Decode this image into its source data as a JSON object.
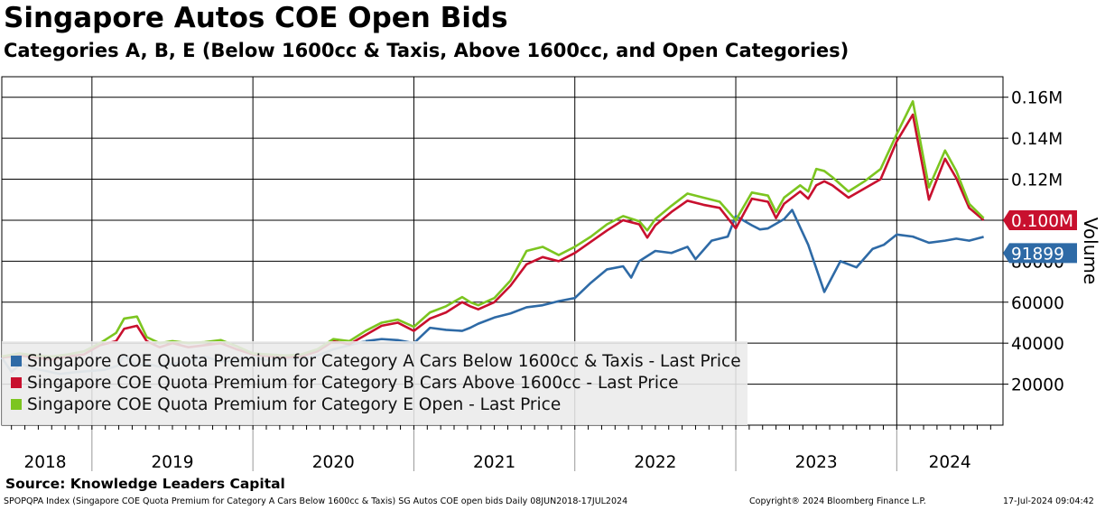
{
  "title": "Singapore Autos COE Open Bids",
  "subtitle": "Categories A, B, E (Below 1600cc & Taxis, Above 1600cc, and Open Categories)",
  "source": "Source: Knowledge Leaders Capital",
  "footer": {
    "left": "SPOPQPA Index (Singapore COE Quota Premium for Category A Cars Below 1600cc & Taxis) SG Autos COE open bids  Daily 08JUN2018-17JUL2024",
    "middle": "Copyright® 2024 Bloomberg Finance L.P.",
    "right": "17-Jul-2024 09:04:42"
  },
  "colors": {
    "cat_a": "#2e6aa6",
    "cat_b": "#c8102e",
    "cat_e": "#7cc520",
    "cat_a_early": "#8fb0cf"
  },
  "chart_data": {
    "type": "line",
    "ylabel": "Volume",
    "ylim": [
      0,
      170000
    ],
    "y_ticks": [
      20000,
      40000,
      60000,
      80000,
      100000,
      120000,
      140000,
      160000
    ],
    "y_tick_labels": [
      "20000",
      "40000",
      "60000",
      "80000",
      "0.10M",
      "0.12M",
      "0.14M",
      "0.16M"
    ],
    "x_year_labels": [
      "2018",
      "2019",
      "2020",
      "2021",
      "2022",
      "2023",
      "2024"
    ],
    "grid": true,
    "legend_position": "bottom-left",
    "last_value_labels": {
      "cat_b": "0.100M",
      "cat_a": "91899"
    },
    "series": [
      {
        "key": "cat_a",
        "name": "Singapore COE Quota Premium for Category A Cars Below 1600cc & Taxis - Last Price",
        "x": [
          2018.44,
          2018.5,
          2018.56,
          2018.62,
          2018.68,
          2018.74,
          2018.8,
          2018.86,
          2018.92,
          2019.0,
          2019.08,
          2019.16,
          2019.2,
          2019.28,
          2019.34,
          2019.42,
          2019.5,
          2019.6,
          2019.7,
          2019.8,
          2019.9,
          2020.0,
          2020.1,
          2020.2,
          2020.3,
          2020.4,
          2020.5,
          2020.6,
          2020.7,
          2020.8,
          2020.9,
          2021.0,
          2021.1,
          2021.2,
          2021.3,
          2021.35,
          2021.4,
          2021.5,
          2021.6,
          2021.7,
          2021.8,
          2021.9,
          2022.0,
          2022.1,
          2022.2,
          2022.3,
          2022.35,
          2022.4,
          2022.5,
          2022.6,
          2022.7,
          2022.75,
          2022.85,
          2022.95,
          2023.0,
          2023.1,
          2023.15,
          2023.2,
          2023.3,
          2023.35,
          2023.45,
          2023.55,
          2023.65,
          2023.75,
          2023.85,
          2023.92,
          2024.0,
          2024.1,
          2024.2,
          2024.3,
          2024.37,
          2024.45,
          2024.54
        ],
        "values": [
          33000,
          26000,
          30000,
          28000,
          27000,
          26000,
          25000,
          25500,
          26000,
          26500,
          27000,
          29000,
          34000,
          29000,
          30000,
          28500,
          30000,
          31000,
          33500,
          31000,
          32000,
          33000,
          31500,
          32500,
          32000,
          34000,
          37000,
          39000,
          41000,
          42000,
          41500,
          40000,
          47500,
          46500,
          46000,
          47500,
          49500,
          52500,
          54500,
          57500,
          58500,
          60500,
          62000,
          69500,
          76000,
          77500,
          72000,
          80000,
          85000,
          84000,
          87000,
          81000,
          90000,
          92000,
          102000,
          97500,
          95500,
          96000,
          100500,
          105000,
          88000,
          65000,
          80000,
          77000,
          86000,
          88000,
          93000,
          92000,
          89000,
          90000,
          91000,
          90000,
          91899
        ]
      },
      {
        "key": "cat_b",
        "name": "Singapore COE Quota Premium for Category B Cars Above 1600cc - Last Price",
        "x": [
          2018.44,
          2018.55,
          2018.65,
          2018.75,
          2018.85,
          2018.95,
          2019.05,
          2019.15,
          2019.2,
          2019.28,
          2019.34,
          2019.42,
          2019.5,
          2019.6,
          2019.7,
          2019.8,
          2019.9,
          2020.0,
          2020.1,
          2020.2,
          2020.3,
          2020.4,
          2020.5,
          2020.6,
          2020.7,
          2020.8,
          2020.9,
          2021.0,
          2021.1,
          2021.2,
          2021.3,
          2021.35,
          2021.4,
          2021.5,
          2021.6,
          2021.7,
          2021.8,
          2021.9,
          2022.0,
          2022.1,
          2022.2,
          2022.3,
          2022.4,
          2022.45,
          2022.5,
          2022.6,
          2022.7,
          2022.8,
          2022.9,
          2023.0,
          2023.1,
          2023.2,
          2023.25,
          2023.3,
          2023.4,
          2023.45,
          2023.5,
          2023.55,
          2023.6,
          2023.7,
          2023.8,
          2023.9,
          2024.0,
          2024.1,
          2024.2,
          2024.3,
          2024.37,
          2024.45,
          2024.54
        ],
        "values": [
          33000,
          34000,
          33000,
          32000,
          33500,
          34500,
          39000,
          41000,
          47000,
          48500,
          41000,
          38000,
          40000,
          38000,
          39000,
          40000,
          37000,
          34500,
          33500,
          33000,
          33500,
          36000,
          41000,
          39500,
          44000,
          48500,
          50000,
          46000,
          52000,
          55000,
          60000,
          58000,
          56500,
          60000,
          68000,
          78500,
          82000,
          80000,
          84000,
          89500,
          95000,
          100000,
          98000,
          91500,
          97500,
          104000,
          109500,
          107500,
          106000,
          96000,
          110500,
          109000,
          101000,
          108000,
          114000,
          110500,
          117000,
          119000,
          117000,
          111000,
          115500,
          120000,
          138500,
          151500,
          110000,
          130000,
          120500,
          106000,
          100000
        ]
      },
      {
        "key": "cat_e",
        "name": "Singapore COE Quota Premium for Category E Open - Last Price",
        "x": [
          2018.44,
          2018.55,
          2018.65,
          2018.75,
          2018.85,
          2018.95,
          2019.05,
          2019.15,
          2019.2,
          2019.28,
          2019.34,
          2019.42,
          2019.5,
          2019.6,
          2019.7,
          2019.8,
          2019.9,
          2020.0,
          2020.1,
          2020.2,
          2020.3,
          2020.4,
          2020.5,
          2020.6,
          2020.7,
          2020.8,
          2020.9,
          2021.0,
          2021.1,
          2021.2,
          2021.3,
          2021.35,
          2021.4,
          2021.5,
          2021.6,
          2021.7,
          2021.8,
          2021.9,
          2022.0,
          2022.1,
          2022.2,
          2022.3,
          2022.4,
          2022.45,
          2022.5,
          2022.6,
          2022.7,
          2022.8,
          2022.9,
          2023.0,
          2023.1,
          2023.2,
          2023.25,
          2023.3,
          2023.4,
          2023.45,
          2023.5,
          2023.55,
          2023.6,
          2023.7,
          2023.8,
          2023.9,
          2024.0,
          2024.1,
          2024.2,
          2024.3,
          2024.37,
          2024.45,
          2024.54
        ],
        "values": [
          33500,
          35000,
          34000,
          33500,
          34500,
          36000,
          40000,
          45000,
          52000,
          53000,
          43000,
          40000,
          41000,
          40000,
          40500,
          41500,
          38500,
          35000,
          34500,
          34000,
          34500,
          37000,
          42000,
          41000,
          46000,
          50000,
          51500,
          48000,
          55000,
          58000,
          62500,
          60000,
          58500,
          62000,
          70500,
          85000,
          87000,
          83000,
          87000,
          92000,
          98000,
          102000,
          99500,
          95000,
          100500,
          107000,
          113000,
          111000,
          109000,
          100000,
          113500,
          112000,
          104000,
          111000,
          117000,
          114000,
          125000,
          124000,
          121000,
          114000,
          119000,
          125000,
          142000,
          158000,
          116000,
          134000,
          124000,
          108000,
          101000
        ]
      }
    ]
  }
}
